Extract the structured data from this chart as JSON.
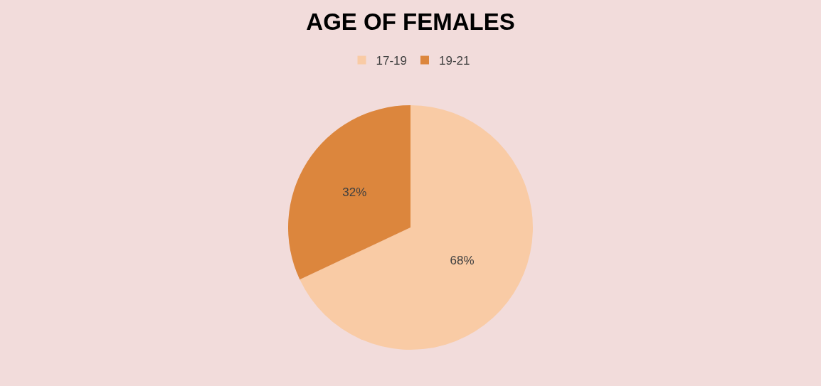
{
  "chart_data": {
    "type": "pie",
    "title": "AGE OF FEMALES",
    "categories": [
      "17-19",
      "19-21"
    ],
    "values": [
      68,
      32
    ],
    "colors": [
      "#f9cba5",
      "#dc863d"
    ],
    "value_labels": [
      "68%",
      "32%"
    ],
    "legend": "top"
  }
}
